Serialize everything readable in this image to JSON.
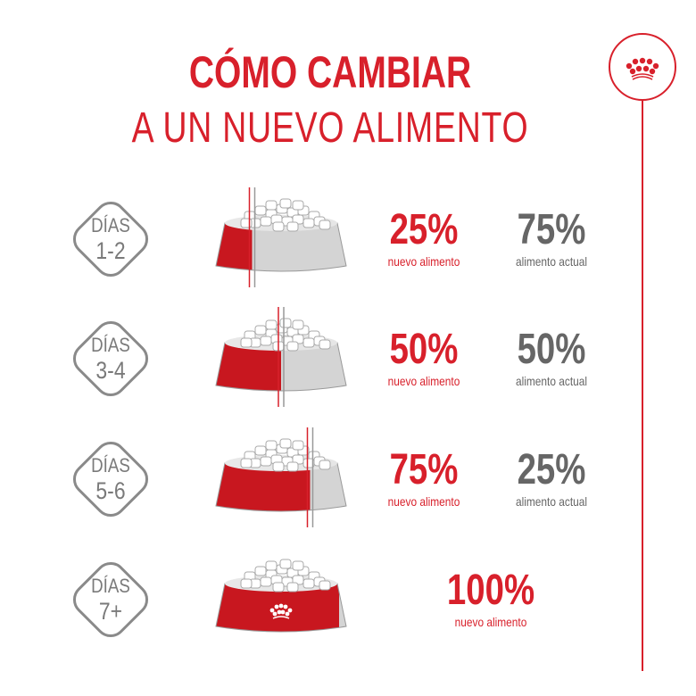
{
  "title": {
    "line1": "CÓMO CAMBIAR",
    "line2": "A UN NUEVO ALIMENTO"
  },
  "logo": {
    "icon": "crown-icon"
  },
  "colors": {
    "brand_red": "#d8202b",
    "gray": "#666666"
  },
  "steps": [
    {
      "days_label": "DÍAS",
      "days": "1-2",
      "new_fraction": 0.25,
      "new_pct": "25%",
      "new_label": "nuevo alimento",
      "old_pct": "75%",
      "old_label": "alimento actual"
    },
    {
      "days_label": "DÍAS",
      "days": "3-4",
      "new_fraction": 0.5,
      "new_pct": "50%",
      "new_label": "nuevo alimento",
      "old_pct": "50%",
      "old_label": "alimento actual"
    },
    {
      "days_label": "DÍAS",
      "days": "5-6",
      "new_fraction": 0.75,
      "new_pct": "75%",
      "new_label": "nuevo alimento",
      "old_pct": "25%",
      "old_label": "alimento actual"
    },
    {
      "days_label": "DÍAS",
      "days": "7+",
      "new_fraction": 1.0,
      "new_pct": "100%",
      "new_label": "nuevo alimento"
    }
  ]
}
